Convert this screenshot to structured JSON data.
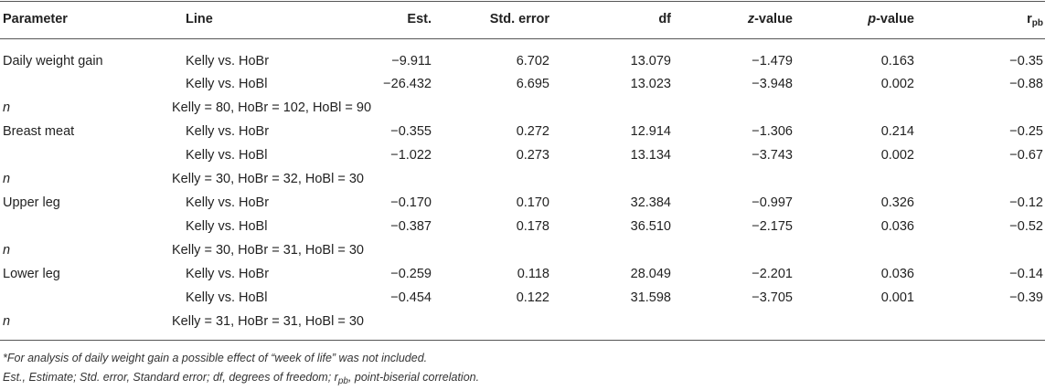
{
  "header": {
    "parameter": "Parameter",
    "line": "Line",
    "est": "Est.",
    "std_error": "Std. error",
    "df": "df",
    "z_value": "z",
    "z_suffix": "-value",
    "p_value": "p",
    "p_suffix": "-value",
    "r": "r",
    "r_sub": "pb"
  },
  "rows": [
    {
      "parameter": "Daily weight gain",
      "line": "Kelly vs. HoBr",
      "est": "−9.911",
      "se": "6.702",
      "df": "13.079",
      "z": "−1.479",
      "p": "0.163",
      "r": "−0.35"
    },
    {
      "parameter": "",
      "line": "Kelly vs. HoBl",
      "est": "−26.432",
      "se": "6.695",
      "df": "13.023",
      "z": "−3.948",
      "p": "0.002",
      "r": "−0.88"
    },
    {
      "n_label": "n",
      "n_text": "Kelly = 80, HoBr = 102, HoBl = 90"
    },
    {
      "parameter": "Breast meat",
      "line": "Kelly vs. HoBr",
      "est": "−0.355",
      "se": "0.272",
      "df": "12.914",
      "z": "−1.306",
      "p": "0.214",
      "r": "−0.25"
    },
    {
      "parameter": "",
      "line": "Kelly vs. HoBl",
      "est": "−1.022",
      "se": "0.273",
      "df": "13.134",
      "z": "−3.743",
      "p": "0.002",
      "r": "−0.67"
    },
    {
      "n_label": "n",
      "n_text": "Kelly = 30, HoBr = 32, HoBl = 30"
    },
    {
      "parameter": "Upper leg",
      "line": "Kelly vs. HoBr",
      "est": "−0.170",
      "se": "0.170",
      "df": "32.384",
      "z": "−0.997",
      "p": "0.326",
      "r": "−0.12"
    },
    {
      "parameter": "",
      "line": "Kelly vs. HoBl",
      "est": "−0.387",
      "se": "0.178",
      "df": "36.510",
      "z": "−2.175",
      "p": "0.036",
      "r": "−0.52"
    },
    {
      "n_label": "n",
      "n_text": "Kelly = 30, HoBr = 31, HoBl = 30"
    },
    {
      "parameter": "Lower leg",
      "line": "Kelly vs. HoBr",
      "est": "−0.259",
      "se": "0.118",
      "df": "28.049",
      "z": "−2.201",
      "p": "0.036",
      "r": "−0.14"
    },
    {
      "parameter": "",
      "line": "Kelly vs. HoBl",
      "est": "−0.454",
      "se": "0.122",
      "df": "31.598",
      "z": "−3.705",
      "p": "0.001",
      "r": "−0.39"
    },
    {
      "n_label": "n",
      "n_text": "Kelly = 31, HoBr = 31, HoBl = 30"
    }
  ],
  "footnotes": {
    "note1": "*For analysis of daily weight gain a possible effect of “week of life” was not included.",
    "note2_a": "Est., Estimate; Std. error, Standard error; df, degrees of freedom; r",
    "note2_sub": "pb",
    "note2_b": ", point-biserial correlation."
  }
}
